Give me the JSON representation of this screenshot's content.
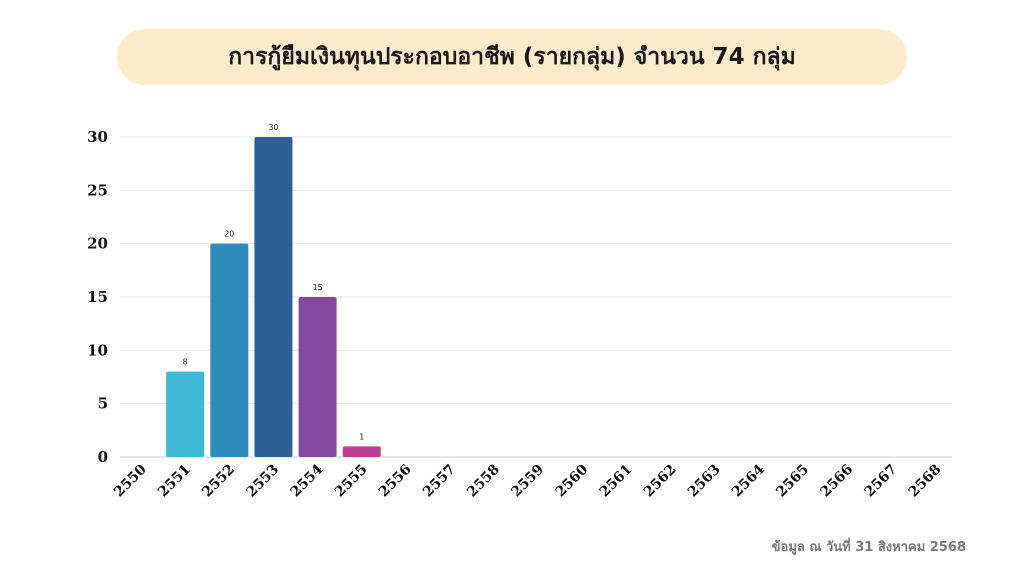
{
  "title": "การกู้ยืมเงินทุนประกอบอาชีพ (รายกลุ่ม) จำนวน 74 กลุ่ม",
  "footnote": "ข้อมูล ณ วันที่ 31 สิงหาคม 2568",
  "chart_data": {
    "type": "bar",
    "title": "การกู้ยืมเงินทุนประกอบอาชีพ (รายกลุ่ม) จำนวน 74 กลุ่ม",
    "xlabel": "",
    "ylabel": "",
    "categories": [
      "2550",
      "2551",
      "2552",
      "2553",
      "2554",
      "2555",
      "2556",
      "2557",
      "2558",
      "2559",
      "2560",
      "2561",
      "2562",
      "2563",
      "2564",
      "2565",
      "2566",
      "2567",
      "2568"
    ],
    "values": [
      0,
      8,
      20,
      30,
      15,
      1,
      0,
      0,
      0,
      0,
      0,
      0,
      0,
      0,
      0,
      0,
      0,
      0,
      0
    ],
    "data_labels": [
      "",
      "8",
      "20",
      "30",
      "15",
      "1",
      "",
      "",
      "",
      "",
      "",
      "",
      "",
      "",
      "",
      "",
      "",
      "",
      ""
    ],
    "bar_colors": [
      "#3fb8d8",
      "#3fb8d8",
      "#2e8bbd",
      "#2c5f96",
      "#8548a0",
      "#c03d95",
      "#c03d95",
      "#c03d95",
      "#c03d95",
      "#c03d95",
      "#c03d95",
      "#c03d95",
      "#c03d95",
      "#c03d95",
      "#c03d95",
      "#c03d95",
      "#c03d95",
      "#c03d95",
      "#c03d95"
    ],
    "yticks": [
      0,
      5,
      10,
      15,
      20,
      25,
      30
    ],
    "ylim": [
      0,
      30
    ],
    "grid": true,
    "legend": "none"
  }
}
